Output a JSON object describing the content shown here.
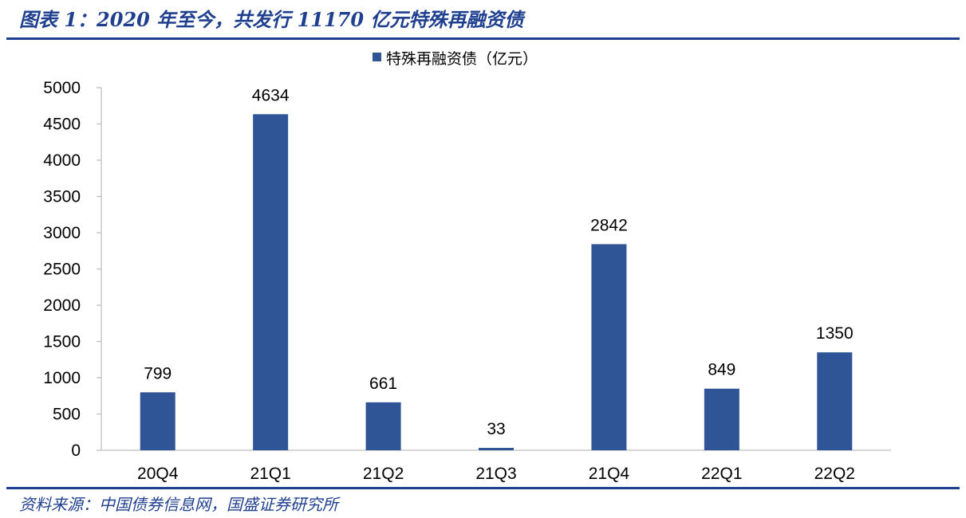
{
  "figure": {
    "title": "图表 1：2020 年至今，共发行 11170 亿元特殊再融资债",
    "source": "资料来源：中国债券信息网，国盛证券研究所"
  },
  "chart_data": {
    "type": "bar",
    "categories": [
      "20Q4",
      "21Q1",
      "21Q2",
      "21Q3",
      "21Q4",
      "22Q1",
      "22Q2"
    ],
    "series": [
      {
        "name": "特殊再融资债（亿元）",
        "values": [
          799,
          4634,
          661,
          33,
          2842,
          849,
          1350
        ],
        "color": "#2f5597"
      }
    ],
    "data_labels": [
      "799",
      "4634",
      "661",
      "33",
      "2842",
      "849",
      "1350"
    ],
    "ylim": [
      0,
      5000
    ],
    "yticks": [
      0,
      500,
      1000,
      1500,
      2000,
      2500,
      3000,
      3500,
      4000,
      4500,
      5000
    ],
    "ytick_labels": [
      "0",
      "500",
      "1000",
      "1500",
      "2000",
      "2500",
      "3000",
      "3500",
      "4000",
      "4500",
      "5000"
    ],
    "grid": false,
    "legend": "top-center",
    "xlabel": "",
    "ylabel": ""
  },
  "colors": {
    "accent": "#1f3f8f",
    "bar": "#2f5597",
    "axis": "#bfbfbf"
  }
}
